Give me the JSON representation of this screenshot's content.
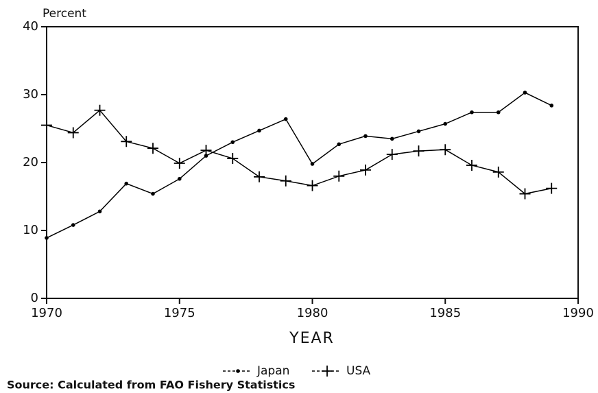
{
  "chart_data": {
    "type": "line",
    "y_label": "Percent",
    "x_label": "YEAR",
    "source": "Source: Calculated from FAO Fishery Statistics",
    "x": [
      1970,
      1971,
      1972,
      1973,
      1974,
      1975,
      1976,
      1977,
      1978,
      1979,
      1980,
      1981,
      1982,
      1983,
      1984,
      1985,
      1986,
      1987,
      1988,
      1989
    ],
    "series": [
      {
        "name": "Japan",
        "color": "#000000",
        "marker": "dot",
        "values": [
          8.9,
          10.8,
          12.8,
          16.9,
          15.4,
          17.6,
          21.0,
          23.0,
          24.7,
          26.4,
          19.8,
          22.7,
          23.9,
          23.5,
          24.6,
          25.7,
          27.4,
          27.4,
          30.3,
          28.4
        ]
      },
      {
        "name": "USA",
        "color": "#000000",
        "marker": "plus",
        "values": [
          25.5,
          24.4,
          27.7,
          23.1,
          22.1,
          19.9,
          21.8,
          20.6,
          17.9,
          17.3,
          16.6,
          18.0,
          18.9,
          21.2,
          21.7,
          21.9,
          19.6,
          18.6,
          15.4,
          16.2
        ]
      }
    ],
    "xlim": [
      1970,
      1990
    ],
    "xticks": [
      1970,
      1975,
      1980,
      1985,
      1990
    ],
    "ylim": [
      0,
      40
    ],
    "yticks": [
      0,
      10,
      20,
      30,
      40
    ],
    "grid": false
  }
}
